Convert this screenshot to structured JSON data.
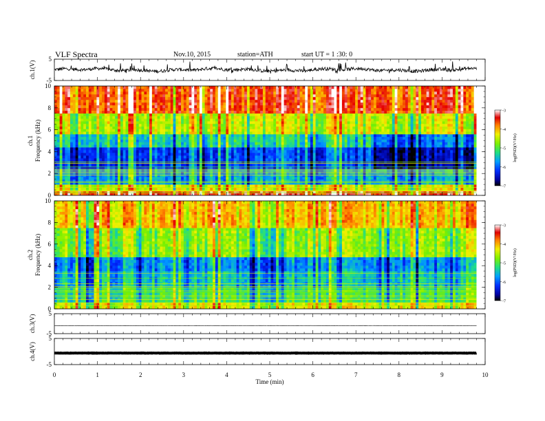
{
  "header": {
    "title": "VLF  Spectra",
    "date": "Nov.10, 2015",
    "station": "station=ATH",
    "start": "start  UT  =   1  :30: 0"
  },
  "chart_data": [
    {
      "type": "line",
      "name": "ch1-waveform",
      "ylabel": "ch.1(V)",
      "ylim": [
        -5,
        5
      ],
      "yticks": [
        "5",
        "-5"
      ],
      "xlim": [
        0,
        10
      ],
      "baseline": 0,
      "amplitude": 1.6,
      "color": "#000000"
    },
    {
      "type": "heatmap",
      "name": "ch1-spectrogram",
      "ylabel_lines": [
        "ch.1",
        "Frequency (kHz)"
      ],
      "ylim": [
        0,
        10
      ],
      "yticks": [
        "0",
        "2",
        "4",
        "6",
        "8",
        "10"
      ],
      "xlim": [
        0,
        9.8
      ],
      "colorbar": {
        "label": "log(PSD)(V²/Hz)",
        "ticks": [
          "-3",
          "-4",
          "-5",
          "-6",
          "-7"
        ],
        "range": [
          -7,
          -3
        ]
      },
      "levels_by_band_kHz": [
        {
          "band": [
            0,
            0.4
          ],
          "level": -3.6
        },
        {
          "band": [
            0.4,
            1.0
          ],
          "level": -4.6
        },
        {
          "band": [
            1.0,
            2.4
          ],
          "level": -5.9
        },
        {
          "band": [
            2.4,
            4.4
          ],
          "level": -6.4
        },
        {
          "band": [
            4.4,
            5.6
          ],
          "level": -5.6
        },
        {
          "band": [
            5.6,
            7.5
          ],
          "level": -4.7
        },
        {
          "band": [
            7.5,
            10
          ],
          "level": -3.7
        }
      ]
    },
    {
      "type": "heatmap",
      "name": "ch2-spectrogram",
      "ylabel_lines": [
        "ch.2",
        "Frequency (kHz)"
      ],
      "ylim": [
        0,
        10
      ],
      "yticks": [
        "0",
        "2",
        "4",
        "6",
        "8",
        "10"
      ],
      "xlim": [
        0,
        9.8
      ],
      "colorbar": {
        "label": "log(PSD)(V²/Hz)",
        "ticks": [
          "-3",
          "-4",
          "-5",
          "-6",
          "-7"
        ],
        "range": [
          -7,
          -3
        ]
      },
      "levels_by_band_kHz": [
        {
          "band": [
            0,
            0.6
          ],
          "level": -4.6
        },
        {
          "band": [
            0.6,
            2.0
          ],
          "level": -5.4
        },
        {
          "band": [
            2.0,
            3.5
          ],
          "level": -5.8
        },
        {
          "band": [
            3.5,
            4.8
          ],
          "level": -6.1
        },
        {
          "band": [
            4.8,
            7.5
          ],
          "level": -5.0
        },
        {
          "band": [
            7.5,
            10
          ],
          "level": -4.3
        }
      ]
    },
    {
      "type": "line",
      "name": "ch3-waveform",
      "ylabel": "ch.3(V)",
      "ylim": [
        -5,
        5
      ],
      "yticks": [
        "5",
        "-5"
      ],
      "xlim": [
        0,
        10
      ],
      "baseline": -1,
      "amplitude": 0.15,
      "color": "#000000"
    },
    {
      "type": "line",
      "name": "ch4-waveform",
      "ylabel": "ch.4(V)",
      "ylim": [
        -5,
        5
      ],
      "yticks": [
        "5",
        "-5"
      ],
      "xlim": [
        0,
        10
      ],
      "baseline": -0.6,
      "amplitude": 0.1,
      "color": "#000000"
    }
  ],
  "xaxis": {
    "label": "Time  (min)",
    "ticks": [
      "0",
      "1",
      "2",
      "3",
      "4",
      "5",
      "6",
      "7",
      "8",
      "9",
      "10"
    ],
    "range": [
      0,
      10
    ]
  }
}
